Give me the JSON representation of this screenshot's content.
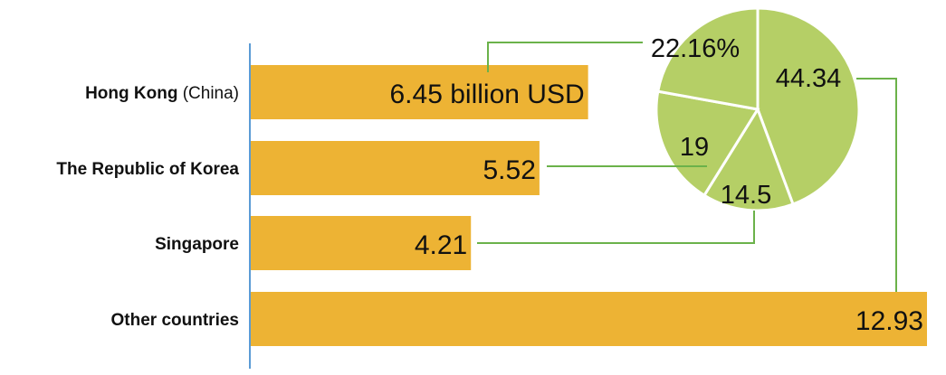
{
  "chart_data": [
    {
      "type": "bar",
      "orientation": "horizontal",
      "categories": [
        {
          "name": "Hong Kong",
          "note": "(China)"
        },
        {
          "name": "The Republic of Korea",
          "note": ""
        },
        {
          "name": "Singapore",
          "note": ""
        },
        {
          "name": "Other countries",
          "note": ""
        }
      ],
      "values": [
        6.45,
        5.52,
        4.21,
        12.93
      ],
      "value_labels": [
        "6.45 billion USD",
        "5.52",
        "4.21",
        "12.93"
      ],
      "xlim": [
        0,
        12.93
      ],
      "grid": false,
      "title": "",
      "xlabel": "",
      "ylabel": ""
    },
    {
      "type": "pie",
      "values": [
        44.34,
        14.5,
        19,
        22.16
      ],
      "value_labels": [
        "44.34",
        "14.5",
        "19",
        "22.16%"
      ],
      "start_angle_deg": 0,
      "direction": "clockwise"
    }
  ],
  "colors": {
    "bar_fill": "#EDB334",
    "pie_fill": "#B5CF66",
    "pie_edge": "#ffffff",
    "connector": "#6BB24A",
    "axis": "#5B9BD5",
    "text": "#111111"
  }
}
